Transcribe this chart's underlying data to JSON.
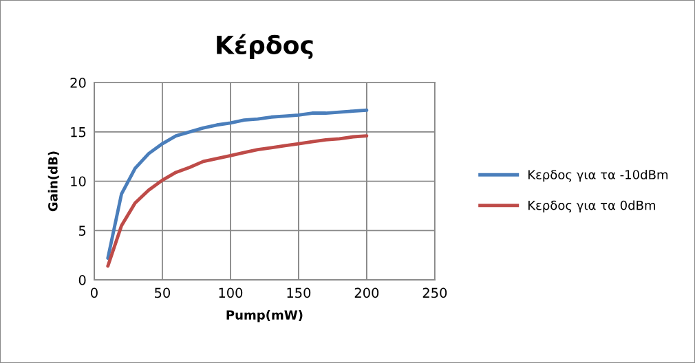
{
  "chart_data": {
    "type": "line",
    "title": "Κέρδος",
    "xlabel": "Pump(mW)",
    "ylabel": "Gain(dB)",
    "x": [
      10,
      20,
      30,
      40,
      50,
      60,
      70,
      80,
      90,
      100,
      110,
      120,
      130,
      140,
      150,
      160,
      170,
      180,
      190,
      200
    ],
    "series": [
      {
        "name": "Κερδος για τα -10dBm",
        "color": "#4a7ebb",
        "values": [
          2.2,
          8.7,
          11.3,
          12.8,
          13.8,
          14.6,
          15.0,
          15.4,
          15.7,
          15.9,
          16.2,
          16.3,
          16.5,
          16.6,
          16.7,
          16.9,
          16.9,
          17.0,
          17.1,
          17.2
        ]
      },
      {
        "name": "Κερδος για τα 0dBm",
        "color": "#be4b48",
        "values": [
          1.4,
          5.5,
          7.8,
          9.1,
          10.1,
          10.9,
          11.4,
          12.0,
          12.3,
          12.6,
          12.9,
          13.2,
          13.4,
          13.6,
          13.8,
          14.0,
          14.2,
          14.3,
          14.5,
          14.6
        ]
      }
    ],
    "xlim": [
      0,
      250
    ],
    "xticks": [
      0,
      50,
      100,
      150,
      200,
      250
    ],
    "ylim": [
      0,
      20
    ],
    "yticks": [
      0,
      5,
      10,
      15,
      20
    ],
    "grid": true,
    "legend": "right",
    "marker": "none",
    "line_style": "solid"
  }
}
